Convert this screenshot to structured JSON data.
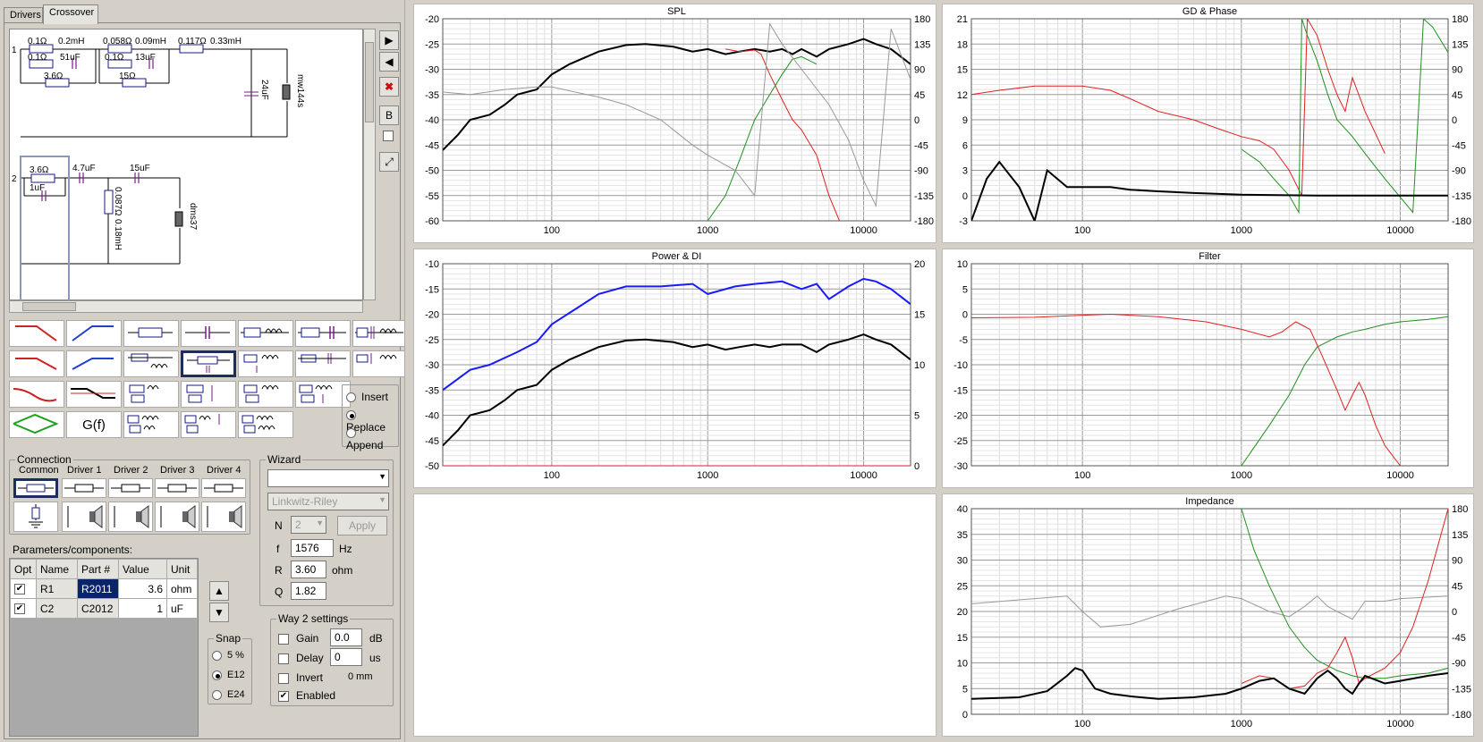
{
  "tabs": [
    "Drivers",
    "Crossover"
  ],
  "schematic": {
    "w1": {
      "id": "1",
      "c1": "0.1Ω",
      "c2": "0.2mH",
      "c3": "0.1Ω",
      "c4": "51uF",
      "c5": "3.6Ω",
      "c6": "0.058Ω",
      "c7": "0.09mH",
      "c8": "0.1Ω",
      "c9": "13uF",
      "c10": "15Ω",
      "c11": "0.117Ω",
      "c12": "0.33mH",
      "c13": "24uF",
      "driver": "mw144s"
    },
    "w2": {
      "id": "2",
      "c1": "3.6Ω",
      "c2": "1uF",
      "c3": "4.7uF",
      "c4": "15uF",
      "c5": "0.087Ω",
      "c6": "0.18mH",
      "driver": "dms37"
    }
  },
  "side_buttons": {
    "b": "B"
  },
  "insert_modes": [
    "Insert",
    "Replace",
    "Append"
  ],
  "gf_label": "G(f)",
  "connection": {
    "title": "Connection",
    "cols": [
      "Common",
      "Driver 1",
      "Driver 2",
      "Driver 3",
      "Driver 4"
    ]
  },
  "params": {
    "title": "Parameters/components:",
    "headers": [
      "Opt",
      "Name",
      "Part #",
      "Value",
      "Unit"
    ],
    "rows": [
      {
        "check": "✔",
        "name": "R1",
        "part": "R2011",
        "value": "3.6",
        "unit": "ohm"
      },
      {
        "check": "✔",
        "name": "C2",
        "part": "C2012",
        "value": "1",
        "unit": "uF"
      }
    ]
  },
  "wizard": {
    "title": "Wizard",
    "type": "Linkwitz-Riley",
    "n_label": "N",
    "n": "2",
    "apply": "Apply",
    "f_label": "f",
    "f": "1576",
    "f_unit": "Hz",
    "r_label": "R",
    "r": "3.60",
    "r_unit": "ohm",
    "q_label": "Q",
    "q": "1.82"
  },
  "snap": {
    "title": "Snap",
    "options": [
      "5 %",
      "E12",
      "E24"
    ],
    "selected": "E12"
  },
  "way2": {
    "title": "Way 2 settings",
    "gain": "Gain",
    "gain_val": "0.0",
    "gain_unit": "dB",
    "delay": "Delay",
    "delay_val": "0",
    "delay_unit": "us",
    "invert": "Invert",
    "invert_val": "0 mm",
    "enabled": "Enabled"
  },
  "chart_data": [
    {
      "type": "line",
      "title": "SPL",
      "xlabel": "",
      "ylabel": "",
      "xlim": [
        20,
        20000
      ],
      "ylim": [
        -60,
        -20
      ],
      "y2lim": [
        -180,
        180
      ],
      "x_ticks": [
        100,
        1000,
        10000
      ],
      "y_ticks": [
        -20,
        -25,
        -30,
        -35,
        -40,
        -45,
        -50,
        -55,
        -60
      ],
      "y2_ticks": [
        180,
        135,
        90,
        45,
        0,
        -45,
        -90,
        -135,
        -180
      ],
      "series": [
        {
          "color": "#000000",
          "x": [
            20,
            25,
            30,
            40,
            50,
            60,
            80,
            100,
            130,
            200,
            300,
            400,
            600,
            800,
            1000,
            1300,
            1600,
            2000,
            2500,
            3000,
            3500,
            4000,
            5000,
            6000,
            8000,
            10000,
            12000,
            15000,
            20000
          ],
          "y": [
            -46,
            -43,
            -40,
            -39,
            -37,
            -35,
            -34,
            -31,
            -29,
            -26.5,
            -25.2,
            -25,
            -25.5,
            -26.5,
            -26,
            -27,
            -26.5,
            -26,
            -26.5,
            -26,
            -27,
            -26,
            -27.5,
            -26,
            -25,
            -24,
            -25,
            -26,
            -29
          ]
        },
        {
          "color": "#e02020",
          "x": [
            1300,
            1600,
            2000,
            2200,
            2500,
            3000,
            3500,
            4000,
            5000,
            6000,
            7000
          ],
          "y": [
            -26,
            -26.5,
            -26.2,
            -27,
            -31,
            -36,
            -40,
            -42,
            -47,
            -55,
            -60
          ]
        },
        {
          "color": "#209020",
          "x": [
            1000,
            1300,
            1600,
            2000,
            2500,
            3000,
            3500,
            4000,
            5000
          ],
          "y": [
            -60,
            -55,
            -48,
            -40,
            -35,
            -31,
            -28,
            -27.5,
            -29
          ]
        },
        {
          "color": "#999999",
          "x": [
            20,
            30,
            50,
            80,
            100,
            200,
            300,
            500,
            800,
            1000,
            1500,
            2000,
            2500,
            3000,
            4000,
            6000,
            8000,
            10000,
            12000,
            15000,
            20000
          ],
          "y": [
            -34.5,
            -35,
            -34,
            -33.5,
            -33.5,
            -35.5,
            -37,
            -40,
            -45,
            -47,
            -50,
            -55,
            -21,
            -25,
            -30,
            -37,
            -44,
            -52,
            -57,
            -22,
            -32
          ]
        }
      ]
    },
    {
      "type": "line",
      "title": "GD & Phase",
      "xlabel": "",
      "ylabel": "",
      "xlim": [
        20,
        20000
      ],
      "ylim": [
        -3,
        21
      ],
      "y2lim": [
        -180,
        180
      ],
      "x_ticks": [
        100,
        1000,
        10000
      ],
      "y_ticks": [
        21,
        18,
        15,
        12,
        9,
        6,
        3,
        0,
        -3
      ],
      "y2_ticks": [
        180,
        135,
        90,
        45,
        0,
        -45,
        -90,
        -135,
        -180
      ],
      "series": [
        {
          "color": "#e02020",
          "x": [
            20,
            30,
            50,
            80,
            100,
            150,
            200,
            300,
            500,
            700,
            1000,
            1300,
            1600,
            2000,
            2400,
            2600,
            3000,
            3500,
            4000,
            4500,
            5000,
            6000,
            8000
          ],
          "y": [
            12,
            12.5,
            13,
            13,
            13,
            12.5,
            11.5,
            10,
            9,
            8,
            7,
            6.5,
            5.5,
            3,
            0,
            21,
            19,
            15,
            12,
            10,
            14,
            10,
            5
          ]
        },
        {
          "color": "#209020",
          "x": [
            1000,
            1300,
            1600,
            2000,
            2300,
            2400,
            2600,
            3000,
            3500,
            4000,
            5000,
            6000,
            8000,
            12000,
            14000,
            16000,
            20000
          ],
          "y": [
            5.5,
            4,
            2,
            0,
            -2,
            21,
            19,
            16,
            12,
            9,
            7,
            5,
            2,
            -2,
            21,
            20,
            17
          ]
        },
        {
          "color": "#000000",
          "x": [
            20,
            25,
            30,
            40,
            50,
            60,
            80,
            100,
            150,
            200,
            300,
            500,
            1000,
            3000,
            10000,
            20000
          ],
          "y": [
            -3,
            2,
            4,
            1,
            -3,
            3,
            1,
            1,
            1,
            0.7,
            0.5,
            0.3,
            0.1,
            0,
            0,
            0
          ]
        }
      ]
    },
    {
      "type": "line",
      "title": "Power & DI",
      "xlabel": "",
      "ylabel": "",
      "xlim": [
        20,
        20000
      ],
      "ylim": [
        -50,
        -10
      ],
      "y2lim": [
        0,
        20
      ],
      "x_ticks": [
        100,
        1000,
        10000
      ],
      "y_ticks": [
        -10,
        -15,
        -20,
        -25,
        -30,
        -35,
        -40,
        -45,
        -50
      ],
      "y2_ticks": [
        20,
        15,
        10,
        5,
        0
      ],
      "series": [
        {
          "color": "#1a1aff",
          "x": [
            20,
            30,
            40,
            60,
            80,
            100,
            150,
            200,
            300,
            500,
            800,
            1000,
            1500,
            2000,
            3000,
            4000,
            5000,
            6000,
            8000,
            10000,
            12000,
            15000,
            20000
          ],
          "y": [
            -35,
            -31,
            -30,
            -27.5,
            -25.5,
            -22,
            -18.5,
            -16,
            -14.5,
            -14.5,
            -14,
            -16,
            -14.5,
            -14,
            -13.5,
            -15,
            -14,
            -17,
            -14.5,
            -13,
            -13.5,
            -15,
            -18
          ]
        },
        {
          "color": "#000000",
          "x": [
            20,
            25,
            30,
            40,
            50,
            60,
            80,
            100,
            130,
            200,
            300,
            400,
            600,
            800,
            1000,
            1300,
            1600,
            2000,
            2500,
            3000,
            4000,
            5000,
            6000,
            8000,
            10000,
            12000,
            15000,
            20000
          ],
          "y": [
            -46,
            -43,
            -40,
            -39,
            -37,
            -35,
            -34,
            -31,
            -29,
            -26.5,
            -25.2,
            -25,
            -25.5,
            -26.5,
            -26,
            -27,
            -26.5,
            -26,
            -26.5,
            -26,
            -26,
            -27.5,
            -26,
            -25,
            -24,
            -25,
            -26,
            -29
          ]
        },
        {
          "color": "#e02020",
          "x": [
            20,
            20000
          ],
          "y": [
            -50,
            -50
          ]
        }
      ]
    },
    {
      "type": "line",
      "title": "Filter",
      "xlabel": "",
      "ylabel": "",
      "xlim": [
        20,
        20000
      ],
      "ylim": [
        -30,
        10
      ],
      "x_ticks": [
        100,
        1000,
        10000
      ],
      "y_ticks": [
        10,
        5,
        0,
        -5,
        -10,
        -15,
        -20,
        -25,
        -30
      ],
      "series": [
        {
          "color": "#e02020",
          "x": [
            20,
            50,
            100,
            150,
            300,
            600,
            1000,
            1500,
            1800,
            2200,
            2700,
            3200,
            4000,
            4500,
            5000,
            5500,
            6000,
            7000,
            8000,
            10000
          ],
          "y": [
            -0.7,
            -0.6,
            -0.2,
            0,
            -0.5,
            -1.5,
            -3,
            -4.5,
            -3.5,
            -1.5,
            -3,
            -8,
            -15,
            -19,
            -16,
            -13.5,
            -16,
            -22,
            -26,
            -30
          ]
        },
        {
          "color": "#209020",
          "x": [
            1000,
            1500,
            2000,
            2500,
            3000,
            4000,
            5000,
            6000,
            8000,
            10000,
            15000,
            20000
          ],
          "y": [
            -30,
            -22,
            -16,
            -10,
            -6.5,
            -4.5,
            -3.5,
            -3,
            -2,
            -1.5,
            -1,
            -0.5
          ]
        }
      ]
    },
    {
      "type": "line",
      "title": "Impedance",
      "xlabel": "",
      "ylabel": "",
      "xlim": [
        20,
        20000
      ],
      "ylim": [
        0,
        40
      ],
      "y2lim": [
        -180,
        180
      ],
      "x_ticks": [
        100,
        1000,
        10000
      ],
      "y_ticks": [
        40,
        35,
        30,
        25,
        20,
        15,
        10,
        5,
        0
      ],
      "y2_ticks": [
        180,
        135,
        90,
        45,
        0,
        -45,
        -90,
        -135,
        -180
      ],
      "series": [
        {
          "color": "#999999",
          "x": [
            20,
            50,
            80,
            100,
            130,
            200,
            400,
            800,
            1000,
            1500,
            2000,
            2500,
            3000,
            3500,
            4000,
            5000,
            6000,
            8000,
            10000,
            20000
          ],
          "y": [
            21.5,
            22.5,
            23,
            20,
            17,
            17.5,
            20.5,
            23,
            22.5,
            20,
            19,
            21,
            23,
            21,
            20,
            18.5,
            22,
            22,
            22.5,
            23
          ]
        },
        {
          "color": "#209020",
          "x": [
            1000,
            1200,
            1500,
            2000,
            2500,
            3000,
            4000,
            5000,
            6000,
            8000,
            10000,
            15000,
            20000
          ],
          "y": [
            40,
            32,
            25,
            17,
            13,
            10.5,
            8.5,
            7.5,
            7,
            7,
            7.5,
            8,
            9
          ]
        },
        {
          "color": "#e02020",
          "x": [
            1000,
            1300,
            1600,
            2000,
            2500,
            3000,
            3500,
            4000,
            4500,
            5000,
            5500,
            6000,
            8000,
            10000,
            12000,
            15000,
            20000
          ],
          "y": [
            6,
            7.5,
            7,
            5,
            5.5,
            8,
            9,
            12,
            15,
            11,
            6,
            7,
            9,
            12,
            17,
            26,
            40
          ]
        },
        {
          "color": "#000000",
          "x": [
            20,
            40,
            60,
            80,
            90,
            100,
            120,
            150,
            200,
            300,
            500,
            800,
            1000,
            1300,
            1600,
            2000,
            2500,
            3000,
            3500,
            4000,
            4500,
            5000,
            5500,
            6000,
            8000,
            10000,
            15000,
            20000
          ],
          "y": [
            3,
            3.3,
            4.5,
            7.5,
            9,
            8.5,
            5,
            4,
            3.5,
            3,
            3.3,
            4,
            5,
            6.5,
            7,
            5,
            4,
            7,
            8.5,
            7,
            5,
            4,
            6,
            7.5,
            6,
            6.5,
            7.5,
            8
          ]
        }
      ]
    }
  ]
}
